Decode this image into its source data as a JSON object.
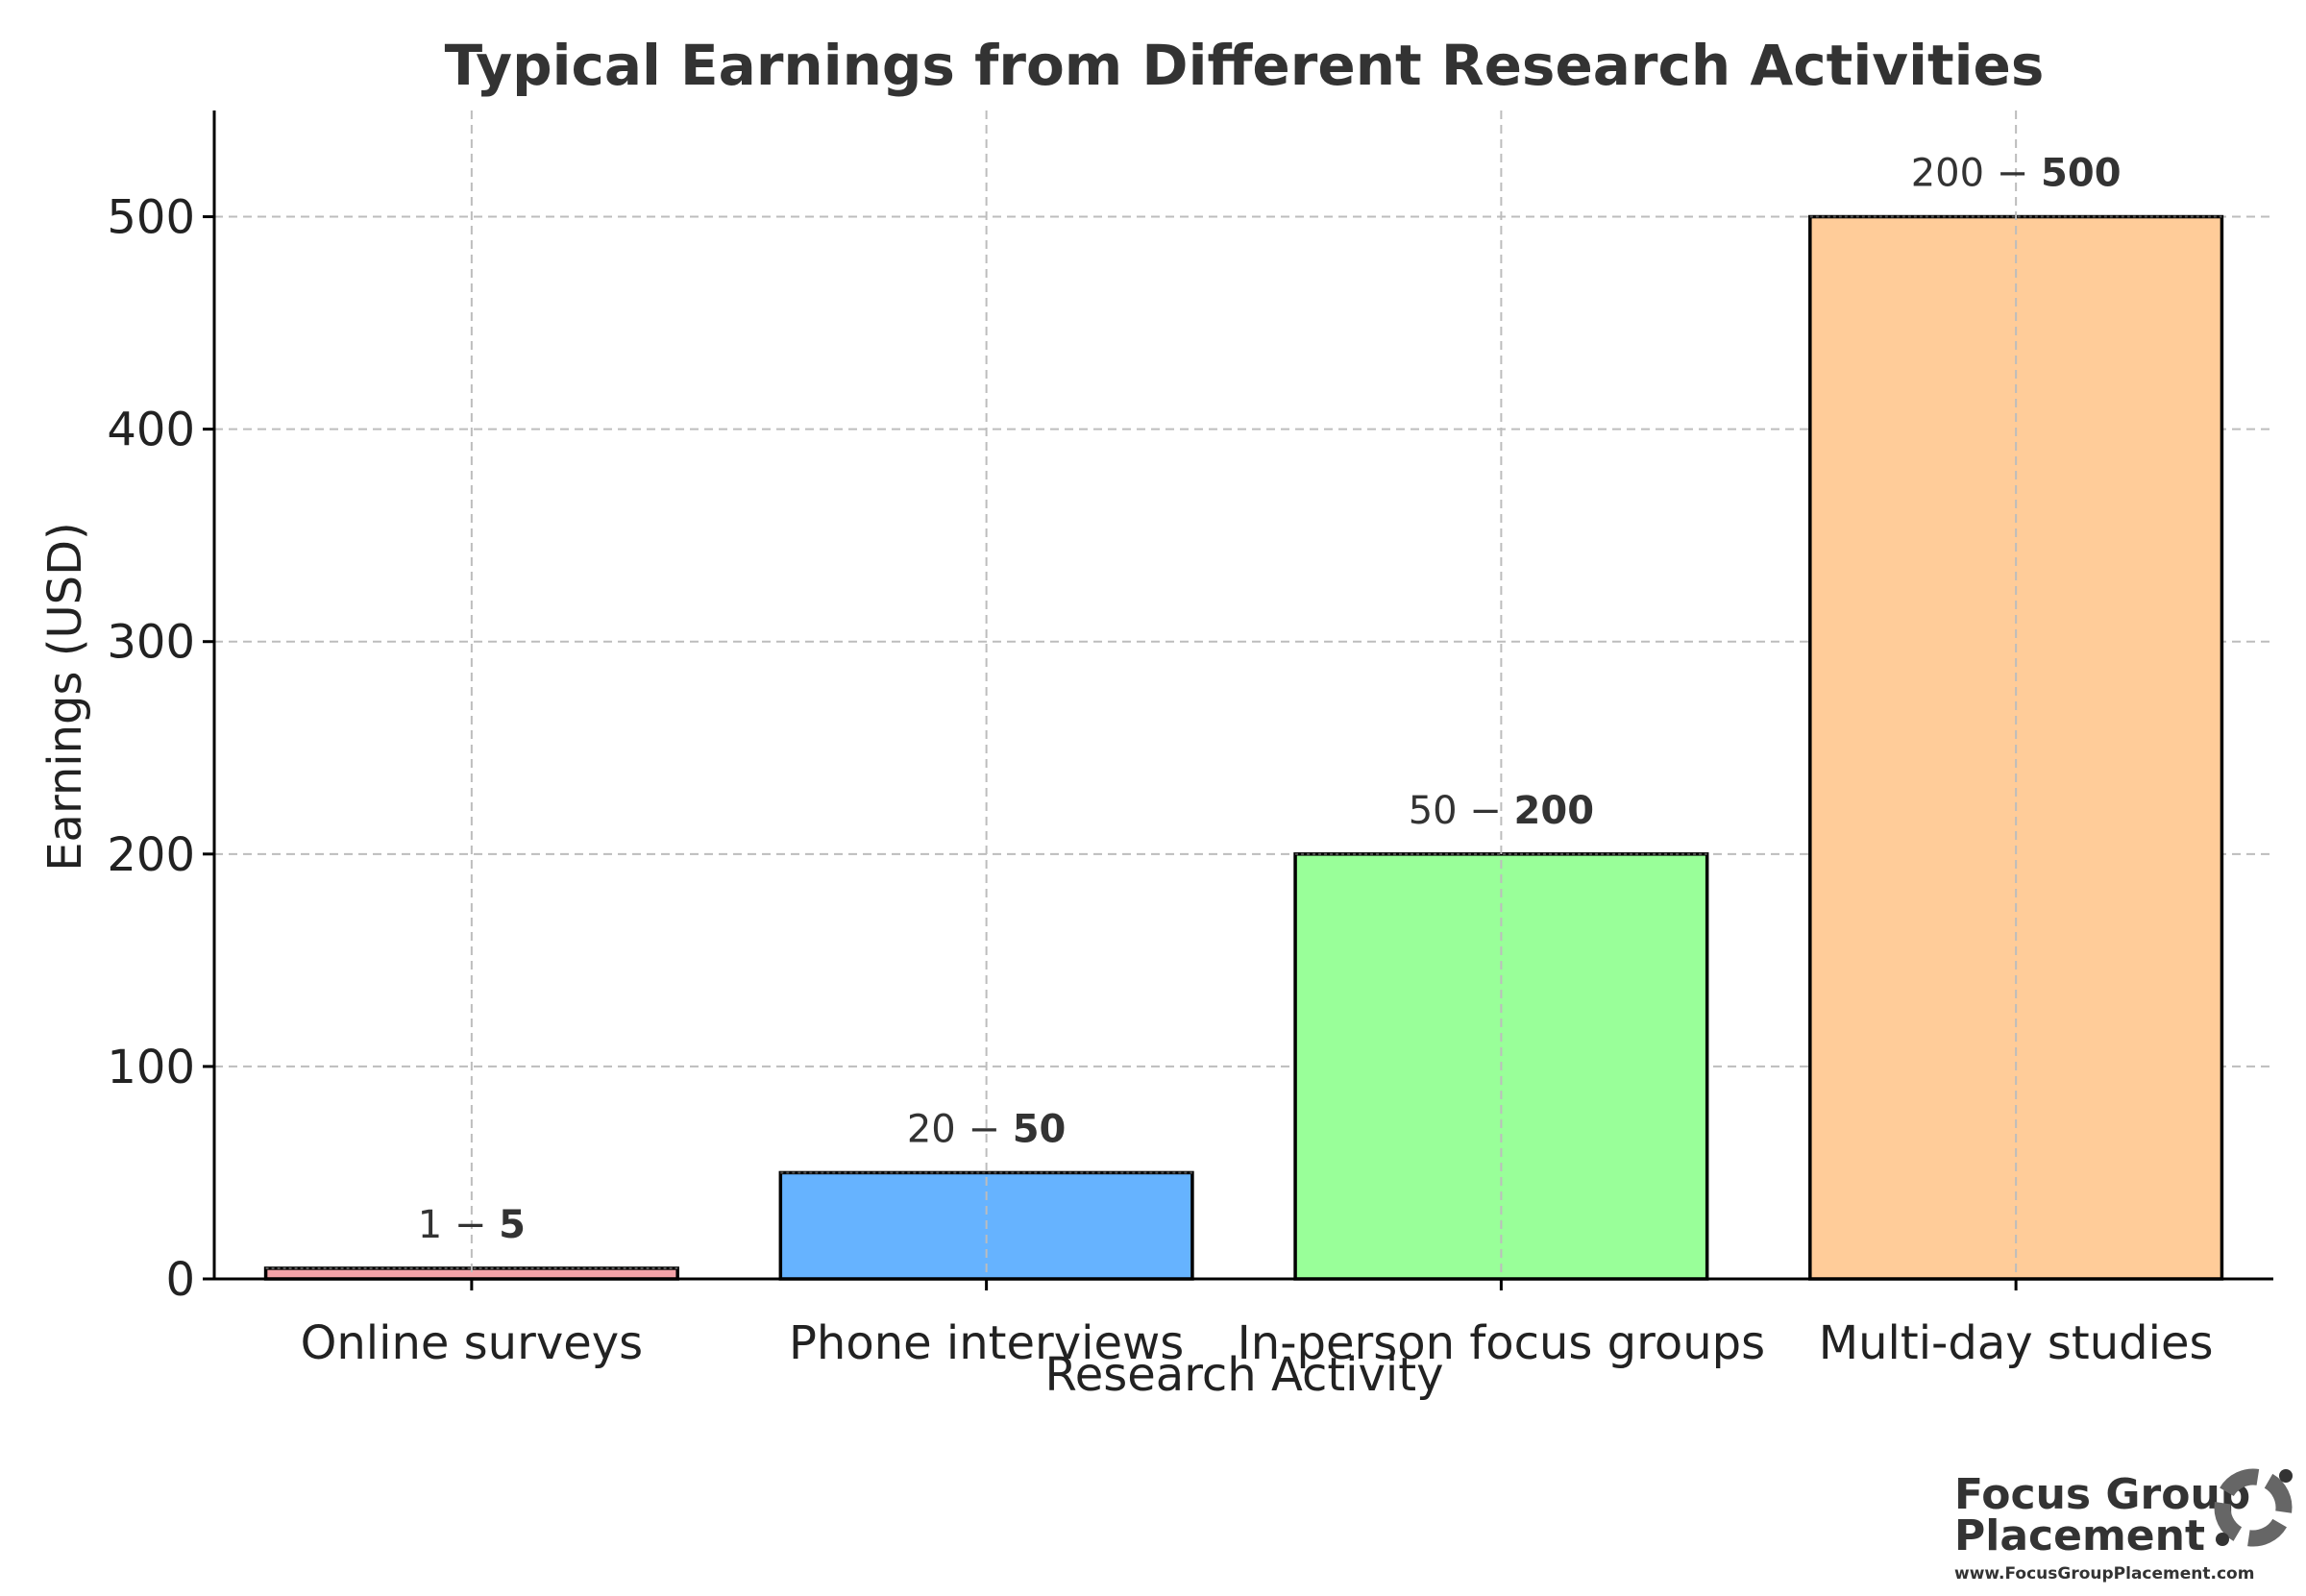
{
  "chart_data": {
    "type": "bar",
    "title": "Typical Earnings from Different Research Activities",
    "xlabel": "Research Activity",
    "ylabel": "Earnings (USD)",
    "categories": [
      "Online surveys",
      "Phone interviews",
      "In-person focus groups",
      "Multi-day studies"
    ],
    "values": [
      5,
      50,
      200,
      500
    ],
    "range_low": [
      1,
      20,
      50,
      200
    ],
    "data_labels": [
      {
        "low": "1",
        "sep": " − ",
        "high": "5"
      },
      {
        "low": "20",
        "sep": " − ",
        "high": "50"
      },
      {
        "low": "50",
        "sep": " − ",
        "high": "200"
      },
      {
        "low": "200",
        "sep": " − ",
        "high": "500"
      }
    ],
    "colors": [
      "#f4a3a8",
      "#66b3ff",
      "#99ff99",
      "#ffcc99"
    ],
    "ylim": [
      0,
      550
    ],
    "yticks": [
      0,
      100,
      200,
      300,
      400,
      500
    ],
    "ytick_labels": [
      "0",
      "100",
      "200",
      "300",
      "400",
      "500"
    ],
    "grid": true
  },
  "logo": {
    "line1": "Focus Group",
    "line2": "Placement",
    "url": "www.FocusGroupPlacement.com",
    "color": "#555555"
  }
}
